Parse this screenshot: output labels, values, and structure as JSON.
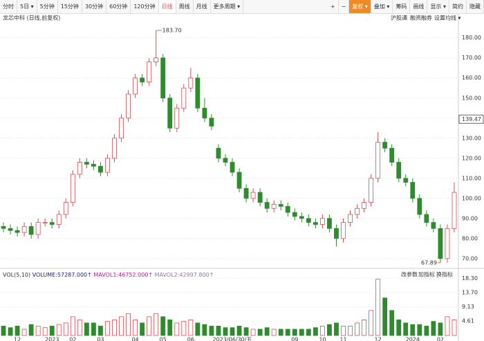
{
  "toolbar": {
    "left": [
      "分时",
      "5日 ▾",
      "5分钟",
      "15分钟",
      "30分钟",
      "60分钟",
      "120分钟",
      "日线",
      "周线",
      "月线",
      "更多周期 ▾"
    ],
    "right": [
      "+",
      "−",
      "复权 ▾",
      "叠加 ▾",
      "筹码",
      "画线",
      "显示 ▾",
      "简约",
      "隐藏"
    ]
  },
  "header": {
    "title": "龙芯中科 (日线,前复权)",
    "links": [
      "沪股通",
      "融资融券",
      "设置均线 ▾"
    ]
  },
  "volume_header": {
    "name": "VOL(5,10)",
    "volume": "VOLUME:57287.000↑",
    "mavol1": "MAVOL1:46752.000↑",
    "mavol2": "MAVOL2:42997.800↑",
    "buttons": [
      "改参数",
      "加指标",
      "换指标"
    ]
  },
  "chart_data": [
    {
      "type": "candlestick",
      "up_color": "#e5484d",
      "down_color": "#2e8b2e",
      "grid": true,
      "ylim": [
        65.8,
        186.8
      ],
      "yticks": [
        {
          "value": 70,
          "label": "70.00"
        },
        {
          "value": 80,
          "label": "80.00"
        },
        {
          "value": 90,
          "label": "90.00"
        },
        {
          "value": 100,
          "label": "100.00"
        },
        {
          "value": 110,
          "label": "110.00"
        },
        {
          "value": 120,
          "label": "120.00"
        },
        {
          "value": 130,
          "label": "130.00"
        },
        {
          "value": 140,
          "label": "140.00"
        },
        {
          "value": 150,
          "label": "150.00"
        },
        {
          "value": 160,
          "label": "160.00"
        },
        {
          "value": 170,
          "label": "170.00"
        },
        {
          "value": 180,
          "label": "180.00"
        }
      ],
      "open": [
        86,
        85,
        84,
        83,
        86,
        82,
        88,
        88,
        87,
        92,
        98,
        112,
        118,
        117,
        116,
        113,
        120,
        130,
        140,
        152,
        160,
        158,
        168,
        170,
        150,
        135,
        145,
        155,
        160,
        145,
        140,
        125,
        120,
        118,
        113,
        105,
        100,
        103,
        98,
        95,
        97,
        96,
        93,
        91,
        90,
        88,
        87,
        90,
        85,
        80,
        88,
        92,
        95,
        98,
        110,
        128,
        125,
        118,
        110,
        108,
        100,
        92,
        88,
        85,
        70,
        85
      ],
      "high": [
        88,
        87,
        86,
        88,
        88,
        90,
        90,
        90,
        94,
        100,
        114,
        120,
        120,
        119,
        118,
        122,
        132,
        142,
        154,
        162,
        162,
        170,
        183.7,
        172,
        152,
        147,
        157,
        165,
        162,
        150,
        142,
        127,
        122,
        120,
        115,
        107,
        105,
        105,
        100,
        99,
        99,
        98,
        95,
        93,
        92,
        90,
        92,
        92,
        87,
        90,
        94,
        97,
        100,
        112,
        133,
        130,
        127,
        120,
        112,
        110,
        102,
        94,
        90,
        87,
        87,
        108
      ],
      "low": [
        83,
        82,
        81,
        81,
        80,
        80,
        86,
        85,
        85,
        90,
        96,
        110,
        115,
        114,
        111,
        111,
        118,
        128,
        138,
        150,
        156,
        156,
        166,
        148,
        133,
        133,
        143,
        153,
        143,
        138,
        134,
        118,
        116,
        111,
        103,
        98,
        98,
        96,
        93,
        93,
        94,
        91,
        89,
        88,
        86,
        85,
        85,
        83,
        76,
        78,
        86,
        90,
        93,
        96,
        108,
        123,
        116,
        108,
        106,
        98,
        90,
        86,
        83,
        67.89,
        68,
        83
      ],
      "close": [
        85,
        84,
        83,
        86,
        82,
        88,
        88,
        87,
        92,
        98,
        112,
        118,
        117,
        116,
        113,
        120,
        130,
        140,
        152,
        160,
        158,
        168,
        170,
        150,
        135,
        145,
        155,
        160,
        145,
        140,
        136,
        120,
        118,
        113,
        105,
        100,
        103,
        98,
        95,
        97,
        96,
        93,
        91,
        90,
        88,
        87,
        90,
        85,
        80,
        88,
        92,
        95,
        98,
        110,
        128,
        125,
        118,
        110,
        108,
        100,
        92,
        88,
        85,
        70,
        85,
        103
      ],
      "annotations": [
        {
          "index": 22,
          "value": 183.7,
          "label": "183.70"
        },
        {
          "index": 63,
          "value": 67.89,
          "label": "67.89"
        }
      ],
      "crosshair": {
        "value": 139.47,
        "label": "139.47"
      }
    },
    {
      "type": "volume",
      "grid": true,
      "ylim": [
        0,
        18.8
      ],
      "yticks": [
        4.61,
        9.13,
        {
          "value": 13.7,
          "label": "13.70"
        },
        {
          "value": 18.3,
          "label": "18.30"
        }
      ],
      "categories": [
        null,
        null,
        "12",
        null,
        null,
        null,
        null,
        "2023",
        null,
        null,
        "02",
        null,
        null,
        null,
        "03",
        null,
        null,
        null,
        null,
        "04",
        null,
        null,
        null,
        "05",
        null,
        null,
        null,
        "06",
        null,
        null,
        null,
        null,
        null,
        "2023/06/30/五",
        null,
        null,
        null,
        null,
        null,
        null,
        null,
        null,
        "09",
        null,
        null,
        null,
        "10",
        null,
        null,
        "11",
        null,
        null,
        null,
        null,
        "12",
        null,
        null,
        null,
        null,
        "2024",
        null,
        null,
        null,
        "02",
        null,
        null
      ],
      "values": [
        3,
        2.5,
        3,
        2,
        3.5,
        3,
        2.5,
        3,
        3.5,
        4,
        6,
        5,
        4,
        4,
        3,
        4.5,
        5,
        6,
        7,
        5,
        4,
        6,
        7,
        6,
        5,
        4,
        4.5,
        5,
        4,
        3.5,
        3,
        3,
        2.5,
        2.5,
        3,
        2.5,
        2,
        2,
        2.5,
        2,
        2,
        2,
        2,
        2,
        2,
        2.5,
        3,
        3.5,
        4,
        3,
        3,
        4,
        5,
        8,
        18,
        12,
        8,
        5,
        4,
        3.5,
        3.5,
        3,
        4.5,
        4,
        6,
        5
      ]
    }
  ]
}
